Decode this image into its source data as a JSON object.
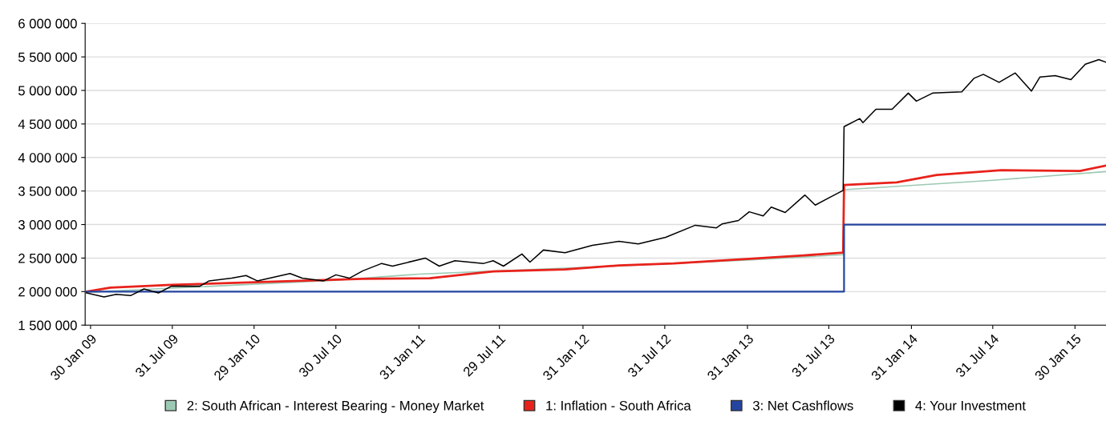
{
  "chart_data": {
    "type": "line",
    "xlim": [
      "2009-01-18",
      "2015-04-09"
    ],
    "xticks": [
      {
        "value": "2009-01-30",
        "label": "30 Jan 09"
      },
      {
        "value": "2009-07-31",
        "label": "31 Jul 09"
      },
      {
        "value": "2010-01-29",
        "label": "29 Jan 10"
      },
      {
        "value": "2010-07-30",
        "label": "30 Jul 10"
      },
      {
        "value": "2011-01-31",
        "label": "31 Jan 11"
      },
      {
        "value": "2011-07-29",
        "label": "29 Jul 11"
      },
      {
        "value": "2012-01-31",
        "label": "31 Jan 12"
      },
      {
        "value": "2012-07-31",
        "label": "31 Jul 12"
      },
      {
        "value": "2013-01-31",
        "label": "31 Jan 13"
      },
      {
        "value": "2013-07-31",
        "label": "31 Jul 13"
      },
      {
        "value": "2014-01-31",
        "label": "31 Jan 14"
      },
      {
        "value": "2014-07-31",
        "label": "31 Jul 14"
      },
      {
        "value": "2015-01-30",
        "label": "30 Jan 15"
      }
    ],
    "ylim": [
      1500000,
      6000000
    ],
    "yticks": [
      {
        "value": 1500000,
        "label": "1 500 000"
      },
      {
        "value": 2000000,
        "label": "2 000 000"
      },
      {
        "value": 2500000,
        "label": "2 500 000"
      },
      {
        "value": 3000000,
        "label": "3 000 000"
      },
      {
        "value": 3500000,
        "label": "3 500 000"
      },
      {
        "value": 4000000,
        "label": "4 000 000"
      },
      {
        "value": 4500000,
        "label": "4 500 000"
      },
      {
        "value": 5000000,
        "label": "5 000 000"
      },
      {
        "value": 5500000,
        "label": "5 500 000"
      },
      {
        "value": 6000000,
        "label": "6 000 000"
      }
    ],
    "grid": "y",
    "legend": "bottom",
    "marker": "none",
    "line_style": "solid",
    "series": [
      {
        "name": "2: South African - Interest Bearing - Money Market",
        "color": "#9cc9b4",
        "x": [
          "2009-01-21",
          "2010-07-30",
          "2011-01-31",
          "2012-01-31",
          "2013-01-31",
          "2013-09-01",
          "2013-09-03",
          "2014-07-31",
          "2015-04-09"
        ],
        "values": [
          1990000,
          2170000,
          2260000,
          2360000,
          2470000,
          2550000,
          3520000,
          3660000,
          3790000
        ]
      },
      {
        "name": "1: Inflation - South Africa",
        "color": "#e8221b",
        "x": [
          "2009-01-21",
          "2009-03-15",
          "2009-07-29",
          "2010-09-28",
          "2011-02-24",
          "2011-07-15",
          "2011-12-22",
          "2012-04-20",
          "2012-08-20",
          "2013-02-04",
          "2013-06-05",
          "2013-09-01",
          "2013-09-03",
          "2013-12-29",
          "2014-03-28",
          "2014-08-19",
          "2015-02-10",
          "2015-04-09"
        ],
        "values": [
          2000000,
          2060000,
          2100000,
          2190000,
          2200000,
          2300000,
          2330000,
          2390000,
          2420000,
          2490000,
          2540000,
          2580000,
          3590000,
          3630000,
          3740000,
          3810000,
          3800000,
          3880000
        ]
      },
      {
        "name": "3: Net Cashflows",
        "color": "#2444a0",
        "x": [
          "2009-01-21",
          "2013-09-03",
          "2013-09-03",
          "2015-04-09"
        ],
        "values": [
          2000000,
          2000000,
          3000000,
          3000000
        ]
      },
      {
        "name": "4: Your Investment",
        "color": "#000000",
        "x": [
          "2009-01-21",
          "2009-03-01",
          "2009-03-28",
          "2009-04-29",
          "2009-05-29",
          "2009-06-30",
          "2009-07-29",
          "2009-09-30",
          "2009-10-21",
          "2009-12-10",
          "2010-01-11",
          "2010-02-05",
          "2010-04-19",
          "2010-05-16",
          "2010-07-03",
          "2010-07-30",
          "2010-08-29",
          "2010-09-28",
          "2010-11-09",
          "2010-12-03",
          "2011-02-14",
          "2011-03-17",
          "2011-04-21",
          "2011-06-24",
          "2011-07-15",
          "2011-08-07",
          "2011-09-17",
          "2011-10-05",
          "2011-11-04",
          "2011-12-22",
          "2012-02-21",
          "2012-04-20",
          "2012-06-02",
          "2012-08-02",
          "2012-10-07",
          "2012-11-23",
          "2012-12-06",
          "2013-01-11",
          "2013-02-04",
          "2013-03-07",
          "2013-03-25",
          "2013-04-25",
          "2013-06-08",
          "2013-07-01",
          "2013-07-29",
          "2013-09-01",
          "2013-09-03",
          "2013-10-08",
          "2013-10-15",
          "2013-11-13",
          "2013-12-19",
          "2014-01-24",
          "2014-02-11",
          "2014-03-19",
          "2014-05-23",
          "2014-06-19",
          "2014-07-10",
          "2014-08-14",
          "2014-09-19",
          "2014-10-25",
          "2014-11-13",
          "2014-12-17",
          "2015-01-21",
          "2015-02-22",
          "2015-03-24",
          "2015-04-09"
        ],
        "values": [
          1980000,
          1920000,
          1960000,
          1940000,
          2040000,
          1980000,
          2080000,
          2080000,
          2160000,
          2200000,
          2240000,
          2160000,
          2270000,
          2200000,
          2160000,
          2250000,
          2200000,
          2310000,
          2420000,
          2380000,
          2500000,
          2380000,
          2460000,
          2420000,
          2460000,
          2380000,
          2560000,
          2440000,
          2620000,
          2580000,
          2690000,
          2750000,
          2710000,
          2810000,
          2990000,
          2950000,
          3010000,
          3060000,
          3190000,
          3130000,
          3260000,
          3180000,
          3440000,
          3290000,
          3390000,
          3510000,
          4460000,
          4580000,
          4520000,
          4720000,
          4720000,
          4960000,
          4840000,
          4960000,
          4980000,
          5180000,
          5240000,
          5120000,
          5260000,
          4990000,
          5200000,
          5220000,
          5160000,
          5390000,
          5460000,
          5420000
        ]
      }
    ]
  }
}
